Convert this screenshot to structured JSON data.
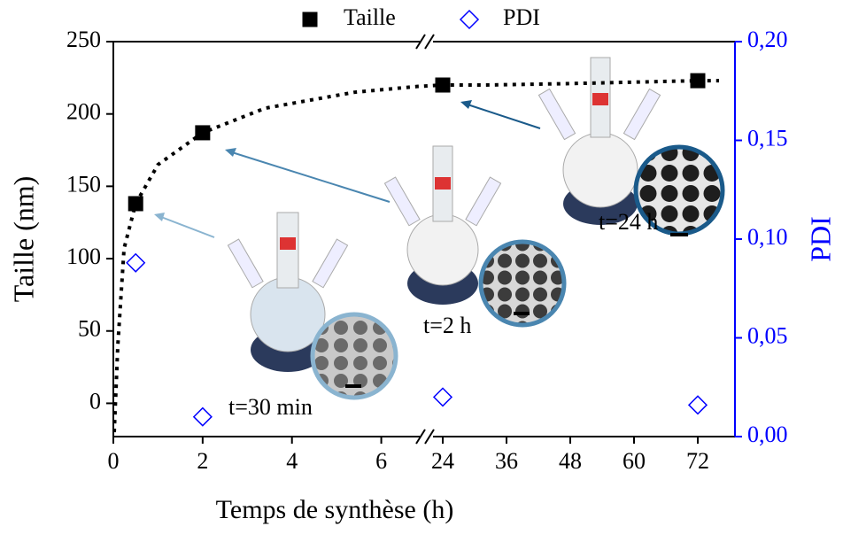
{
  "chart_data": {
    "type": "scatter",
    "x_label": "Temps de synthèse (h)",
    "y_label": "Taille (nm)",
    "y2_label": "PDI",
    "x_segments": [
      {
        "xlim": [
          0,
          7
        ],
        "xticks": [
          0,
          2,
          4,
          6
        ]
      },
      {
        "xlim": [
          21,
          79
        ],
        "xticks": [
          24,
          36,
          48,
          60,
          72
        ]
      }
    ],
    "ylim": [
      -23,
      250
    ],
    "yticks": [
      0,
      50,
      100,
      150,
      200,
      250
    ],
    "y2lim": [
      0,
      0.2
    ],
    "y2ticks": [
      {
        "value": 0,
        "label": "0,00"
      },
      {
        "value": 0.05,
        "label": "0,05"
      },
      {
        "value": 0.1,
        "label": "0,10"
      },
      {
        "value": 0.15,
        "label": "0,15"
      },
      {
        "value": 0.2,
        "label": "0,20"
      }
    ],
    "y2_color": "#0000ff",
    "series": [
      {
        "name": "Taille",
        "color": "#000000",
        "marker": "square",
        "x": [
          0.5,
          2,
          24,
          72
        ],
        "values": [
          138,
          187,
          220,
          223
        ]
      },
      {
        "name": "PDI",
        "color": "#0000ff",
        "marker": "diamond",
        "axis": "y2",
        "x": [
          0.5,
          2,
          24,
          72
        ],
        "values": [
          0.088,
          0.01,
          0.02,
          0.016
        ]
      },
      {
        "color": "#000000",
        "line": "dotted",
        "x": [
          0.02,
          0.1,
          0.24,
          0.5,
          1,
          2,
          3.4,
          5.4,
          6.8,
          24,
          32,
          48,
          60,
          72,
          76
        ],
        "values": [
          -20,
          40,
          107,
          138,
          165,
          187,
          204,
          215,
          219,
          220,
          220,
          221,
          222,
          223,
          223
        ]
      }
    ],
    "annotations": [
      "t=30 min",
      "t=2 h",
      "t=24 h"
    ]
  }
}
